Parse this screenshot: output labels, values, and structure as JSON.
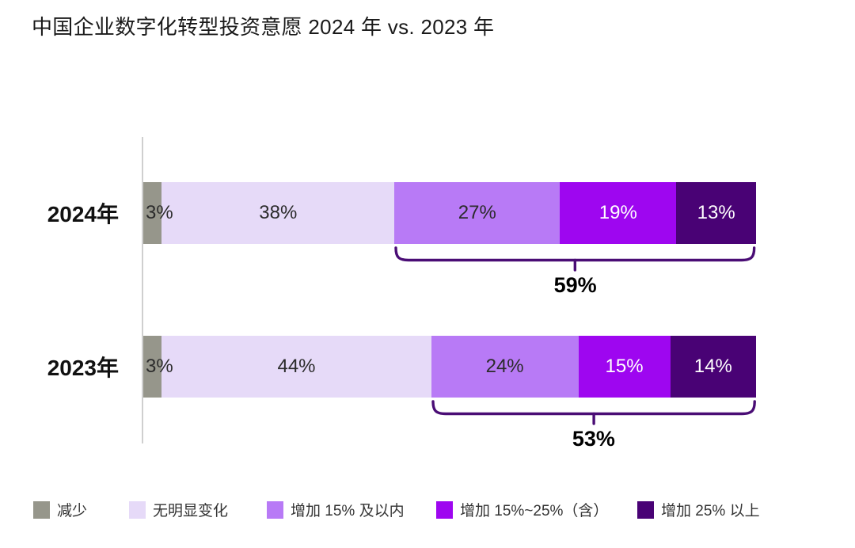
{
  "title": "中国企业数字化转型投资意愿 2024 年 vs. 2023 年",
  "colors": {
    "decrease_gray": "#96968B",
    "no_change_light_purple": "#E6DAF8",
    "inc15_medium_purple": "#B87AF6",
    "inc15_25_bright_purple": "#9E06F0",
    "inc25_dark_purple": "#490275",
    "bracket_stroke": "#4A0D75",
    "axis_gray": "#CFCFCF",
    "dark_text": "#2B2B2B",
    "white_text": "#FFFFFF"
  },
  "chart_data": {
    "type": "bar",
    "stacked": true,
    "orientation": "horizontal",
    "unit": "%",
    "xlim": [
      0,
      100
    ],
    "grid": false,
    "legend_position": "bottom",
    "title": "中国企业数字化转型投资意愿 2024 年 vs. 2023 年",
    "categories": [
      "2024年",
      "2023年"
    ],
    "series": [
      {
        "name": "减少",
        "color": "#96968B",
        "text_color": "#2B2B2B",
        "values": [
          3,
          3
        ]
      },
      {
        "name": "无明显变化",
        "color": "#E6DAF8",
        "text_color": "#2B2B2B",
        "values": [
          38,
          44
        ]
      },
      {
        "name": "增加 15% 及以内",
        "color": "#B87AF6",
        "text_color": "#2B2B2B",
        "values": [
          27,
          24
        ]
      },
      {
        "name": "增加 15%~25%（含）",
        "color": "#9E06F0",
        "text_color": "#FFFFFF",
        "values": [
          19,
          15
        ]
      },
      {
        "name": "增加 25% 以上",
        "color": "#490275",
        "text_color": "#FFFFFF",
        "values": [
          13,
          14
        ]
      }
    ],
    "segment_labels": [
      [
        "3%",
        "38%",
        "27%",
        "19%",
        "13%"
      ],
      [
        "3%",
        "44%",
        "24%",
        "15%",
        "14%"
      ]
    ],
    "brackets": [
      {
        "category": "2024年",
        "label": "59%",
        "covers_series_from_index": 2,
        "sum": 59
      },
      {
        "category": "2023年",
        "label": "53%",
        "covers_series_from_index": 2,
        "sum": 53
      }
    ]
  },
  "legend": {
    "items": [
      {
        "label": "减少",
        "color": "#96968B"
      },
      {
        "label": "无明显变化",
        "color": "#E6DAF8"
      },
      {
        "label": "增加 15% 及以内",
        "color": "#B87AF6"
      },
      {
        "label": "增加 15%~25%（含）",
        "color": "#9E06F0"
      },
      {
        "label": "增加 25% 以上",
        "color": "#490275"
      }
    ]
  }
}
